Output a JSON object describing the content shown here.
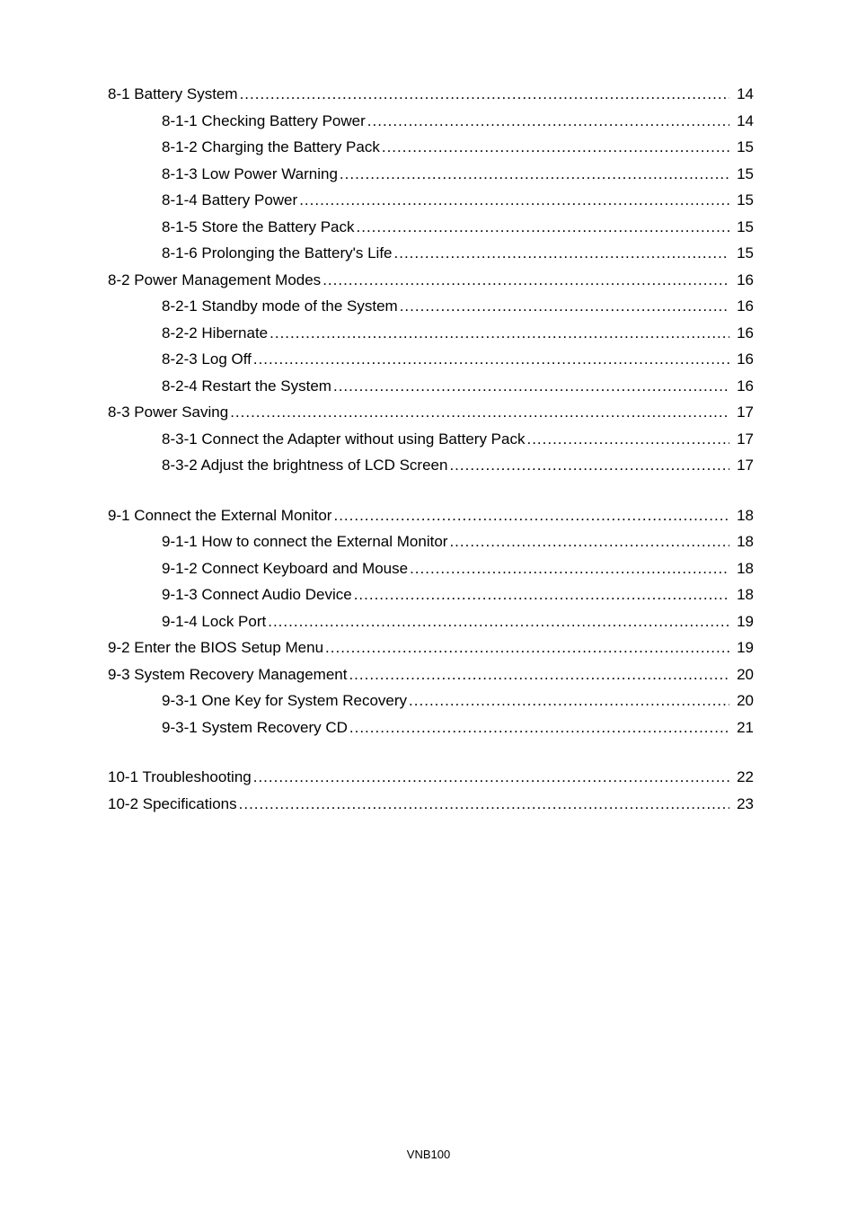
{
  "footer": "VNB100",
  "toc": {
    "blocks": [
      {
        "entries": [
          {
            "level": 1,
            "label": "8-1 Battery System",
            "page": "14"
          },
          {
            "level": 2,
            "label": "8-1-1 Checking Battery Power ",
            "page": "14"
          },
          {
            "level": 2,
            "label": "8-1-2 Charging the Battery Pack ",
            "page": "15"
          },
          {
            "level": 2,
            "label": "8-1-3 Low Power Warning",
            "page": "15"
          },
          {
            "level": 2,
            "label": "8-1-4 Battery Power ",
            "page": "15"
          },
          {
            "level": 2,
            "label": "8-1-5 Store the Battery Pack ",
            "page": "15"
          },
          {
            "level": 2,
            "label": "8-1-6 Prolonging the Battery's Life ",
            "page": "15"
          },
          {
            "level": 1,
            "label": "8-2 Power Management Modes ",
            "page": "16"
          },
          {
            "level": 2,
            "label": "8-2-1 Standby mode of the System",
            "page": "16"
          },
          {
            "level": 2,
            "label": "8-2-2 Hibernate ",
            "page": "16"
          },
          {
            "level": 2,
            "label": "8-2-3 Log Off ",
            "page": "16"
          },
          {
            "level": 2,
            "label": "8-2-4 Restart the System ",
            "page": "16"
          },
          {
            "level": 1,
            "label": "8-3 Power Saving",
            "page": "17"
          },
          {
            "level": 2,
            "label": "8-3-1 Connect the Adapter without using Battery Pack",
            "page": "17"
          },
          {
            "level": 2,
            "label": "8-3-2 Adjust the brightness of LCD Screen ",
            "page": "17"
          }
        ]
      },
      {
        "entries": [
          {
            "level": 1,
            "label": "9-1 Connect the External Monitor",
            "page": "18"
          },
          {
            "level": 2,
            "label": "9-1-1 How to connect the External Monitor ",
            "page": "18"
          },
          {
            "level": 2,
            "label": "9-1-2 Connect Keyboard and Mouse ",
            "page": "18"
          },
          {
            "level": 2,
            "label": "9-1-3 Connect Audio Device ",
            "page": "18"
          },
          {
            "level": 2,
            "label": "9-1-4 Lock Port",
            "page": "19"
          },
          {
            "level": 1,
            "label": "9-2 Enter the BIOS Setup Menu",
            "page": "19"
          },
          {
            "level": 1,
            "label": "9-3 System Recovery Management ",
            "page": "20"
          },
          {
            "level": 2,
            "label": "9-3-1 One Key for System Recovery",
            "page": "20"
          },
          {
            "level": 2,
            "label": "9-3-1 System Recovery CD",
            "page": "21"
          }
        ]
      },
      {
        "entries": [
          {
            "level": 1,
            "label": "10-1 Troubleshooting ",
            "page": "22"
          },
          {
            "level": 1,
            "label": "10-2 Specifications",
            "page": "23"
          }
        ]
      }
    ]
  }
}
